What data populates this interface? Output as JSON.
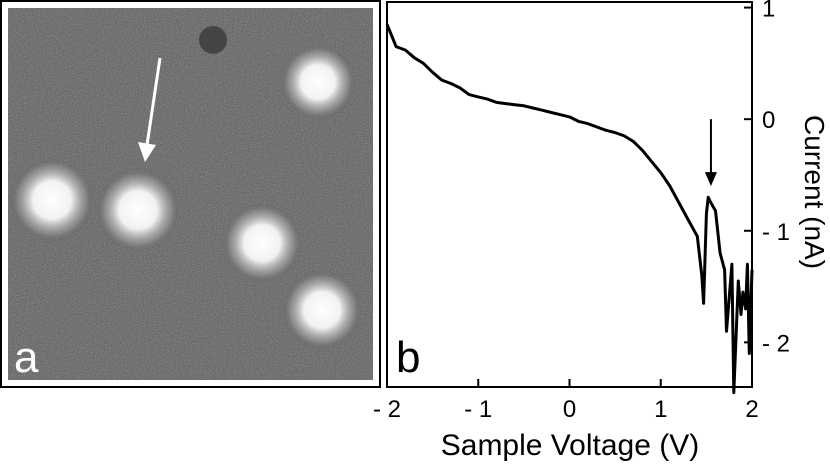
{
  "figure": {
    "panel_a_label": "a",
    "panel_b_label": "b"
  },
  "panel_a": {
    "kind": "stm-image",
    "description_color_background": "#555555",
    "spot_color": "#ffffff"
  },
  "chart_data": {
    "type": "line",
    "xlabel": "Sample Voltage (V)",
    "ylabel": "Current (nA)",
    "xlim": [
      -2,
      2
    ],
    "ylim": [
      -2.4,
      1.05
    ],
    "x_ticks": [
      -2,
      -1,
      0,
      1,
      2
    ],
    "x_tick_labels": [
      "- 2",
      "- 1",
      "0",
      "1",
      "2"
    ],
    "y_ticks": [
      1,
      0,
      -1,
      -2
    ],
    "y_tick_labels": [
      "1",
      "0",
      "- 1",
      "- 2"
    ],
    "grid": false,
    "series": [
      {
        "color": "#000000",
        "x": [
          -2.0,
          -1.95,
          -1.9,
          -1.8,
          -1.7,
          -1.6,
          -1.5,
          -1.4,
          -1.3,
          -1.2,
          -1.1,
          -1.0,
          -0.9,
          -0.8,
          -0.7,
          -0.6,
          -0.5,
          -0.4,
          -0.3,
          -0.2,
          -0.1,
          0.0,
          0.1,
          0.2,
          0.3,
          0.4,
          0.5,
          0.6,
          0.7,
          0.8,
          0.9,
          1.0,
          1.1,
          1.2,
          1.3,
          1.4,
          1.45,
          1.47,
          1.5,
          1.52,
          1.55,
          1.6,
          1.65,
          1.7,
          1.72,
          1.75,
          1.78,
          1.8,
          1.85,
          1.88,
          1.9,
          1.93,
          1.95,
          1.97,
          2.0
        ],
        "y": [
          0.85,
          0.75,
          0.65,
          0.62,
          0.55,
          0.5,
          0.42,
          0.35,
          0.32,
          0.28,
          0.22,
          0.2,
          0.18,
          0.15,
          0.14,
          0.13,
          0.12,
          0.1,
          0.08,
          0.06,
          0.04,
          0.02,
          -0.02,
          -0.04,
          -0.07,
          -0.1,
          -0.12,
          -0.15,
          -0.2,
          -0.28,
          -0.38,
          -0.48,
          -0.6,
          -0.75,
          -0.9,
          -1.05,
          -1.4,
          -1.65,
          -0.85,
          -0.7,
          -0.75,
          -0.82,
          -1.2,
          -1.35,
          -1.9,
          -1.6,
          -1.3,
          -2.45,
          -1.45,
          -1.75,
          -1.55,
          -1.7,
          -1.3,
          -2.1,
          -1.35
        ]
      }
    ],
    "annotations": [
      {
        "type": "arrow",
        "x": 1.55,
        "y_from": 0.0,
        "y_to": -0.6
      }
    ]
  }
}
